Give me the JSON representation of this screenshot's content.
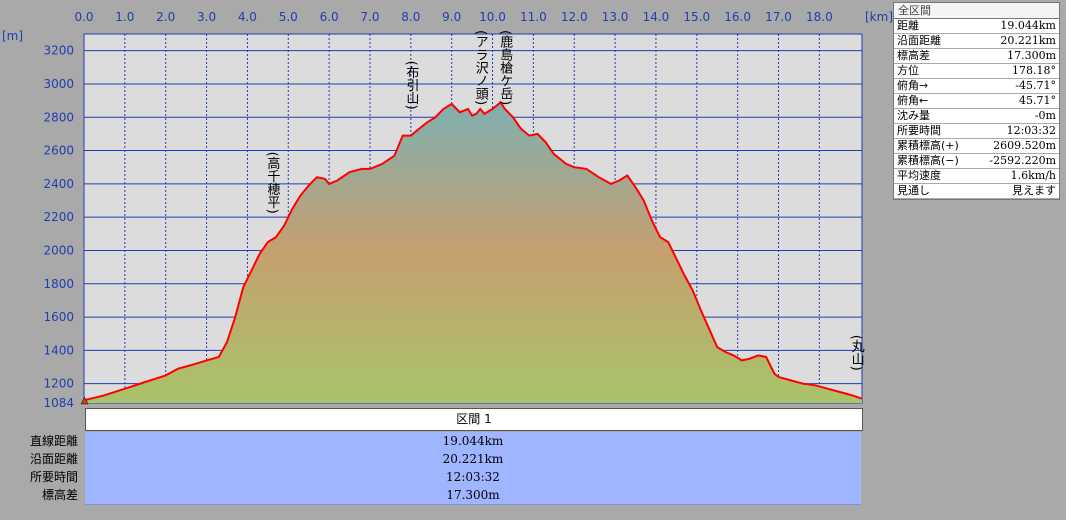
{
  "info_panel": {
    "header": "全区間",
    "rows": [
      {
        "label": "距離",
        "value": "19.044km"
      },
      {
        "label": "沿面距離",
        "value": "20.221km"
      },
      {
        "label": "標高差",
        "value": "17.300m"
      },
      {
        "label": "方位",
        "value": "178.18°"
      },
      {
        "label": "俯角→",
        "value": "-45.71°"
      },
      {
        "label": "俯角←",
        "value": "45.71°"
      },
      {
        "label": "沈み量",
        "value": "-0m"
      },
      {
        "label": "所要時間",
        "value": "12:03:32"
      },
      {
        "label": "累積標高(+)",
        "value": "2609.520m"
      },
      {
        "label": "累積標高(−)",
        "value": "-2592.220m"
      },
      {
        "label": "平均速度",
        "value": "1.6km/h"
      },
      {
        "label": "見通し",
        "value": "見えます"
      }
    ]
  },
  "section": {
    "title": "区間 1",
    "rows": [
      {
        "label": "直線距離",
        "value": "19.044km"
      },
      {
        "label": "沿面距離",
        "value": "20.221km"
      },
      {
        "label": "所要時間",
        "value": "12:03:32"
      },
      {
        "label": "標高差",
        "value": "17.300m"
      }
    ]
  },
  "chart_data": {
    "type": "area",
    "x_unit": "[km]",
    "y_unit": "[m]",
    "xlim": [
      0,
      19.044
    ],
    "ylim": [
      1084,
      3300
    ],
    "x_ticks": [
      0.0,
      1.0,
      2.0,
      3.0,
      4.0,
      5.0,
      6.0,
      7.0,
      8.0,
      9.0,
      10.0,
      11.0,
      12.0,
      13.0,
      14.0,
      15.0,
      16.0,
      17.0,
      18.0
    ],
    "x_tick_labels": [
      "0.0",
      "1.0",
      "2.0",
      "3.0",
      "4.0",
      "5.0",
      "6.0",
      "7.0",
      "8.0",
      "9.0",
      "10.0",
      "11.0",
      "12.0",
      "13.0",
      "14.0",
      "15.0",
      "16.0",
      "17.0",
      "18.0"
    ],
    "y_ticks": [
      1084,
      1200,
      1400,
      1600,
      1800,
      2000,
      2200,
      2400,
      2600,
      2800,
      3000,
      3200
    ],
    "y_tick_labels": [
      "1084",
      "1200",
      "1400",
      "1600",
      "1800",
      "2000",
      "2200",
      "2400",
      "2600",
      "2800",
      "3000",
      "3200"
    ],
    "grid": true,
    "series": [
      {
        "x": [
          0,
          0.5,
          1.0,
          1.5,
          2.0,
          2.3,
          2.6,
          3.0,
          3.3,
          3.5,
          3.7,
          3.9,
          4.1,
          4.3,
          4.5,
          4.7,
          4.9,
          5.1,
          5.3,
          5.5,
          5.7,
          5.9,
          6.0,
          6.2,
          6.5,
          6.8,
          7.0,
          7.3,
          7.6,
          7.8,
          8.0,
          8.2,
          8.4,
          8.6,
          8.8,
          9.0,
          9.2,
          9.4,
          9.5,
          9.6,
          9.7,
          9.8,
          10.0,
          10.2,
          10.3,
          10.5,
          10.7,
          10.9,
          11.1,
          11.3,
          11.5,
          11.8,
          12.0,
          12.3,
          12.6,
          12.9,
          13.1,
          13.3,
          13.5,
          13.7,
          13.9,
          14.1,
          14.3,
          14.5,
          14.7,
          14.9,
          15.1,
          15.3,
          15.5,
          15.7,
          15.9,
          16.1,
          16.3,
          16.5,
          16.7,
          16.9,
          17.0,
          17.3,
          17.6,
          17.9,
          18.2,
          18.5,
          18.8,
          19.044
        ],
        "y": [
          1100,
          1130,
          1170,
          1210,
          1250,
          1290,
          1310,
          1340,
          1360,
          1450,
          1600,
          1780,
          1880,
          1980,
          2050,
          2080,
          2150,
          2250,
          2330,
          2390,
          2440,
          2430,
          2400,
          2420,
          2470,
          2490,
          2490,
          2520,
          2570,
          2690,
          2690,
          2730,
          2770,
          2800,
          2850,
          2880,
          2830,
          2850,
          2810,
          2820,
          2850,
          2820,
          2850,
          2890,
          2850,
          2800,
          2730,
          2690,
          2700,
          2650,
          2580,
          2520,
          2500,
          2490,
          2440,
          2400,
          2420,
          2450,
          2380,
          2300,
          2180,
          2080,
          2050,
          1950,
          1850,
          1760,
          1640,
          1530,
          1420,
          1390,
          1370,
          1340,
          1350,
          1370,
          1360,
          1260,
          1240,
          1220,
          1200,
          1190,
          1170,
          1150,
          1130,
          1110
        ]
      }
    ],
    "annotations": [
      {
        "text": "(高千穂平)",
        "x": 4.6
      },
      {
        "text": "(布引山)",
        "x": 8.0
      },
      {
        "text": "(アラ沢ノ頭)",
        "x": 9.7
      },
      {
        "text": "(鹿島槍ケ岳)",
        "x": 10.3
      },
      {
        "text": "(丸山)",
        "x": 18.9
      }
    ],
    "colors": {
      "line": "#ff0000",
      "grid": "#1f3fae",
      "plot_bg": "#dcdcdc",
      "fill_top": "#7fb0b0",
      "fill_mid": "#c69f6f",
      "fill_bottom": "#a8c46a"
    }
  }
}
